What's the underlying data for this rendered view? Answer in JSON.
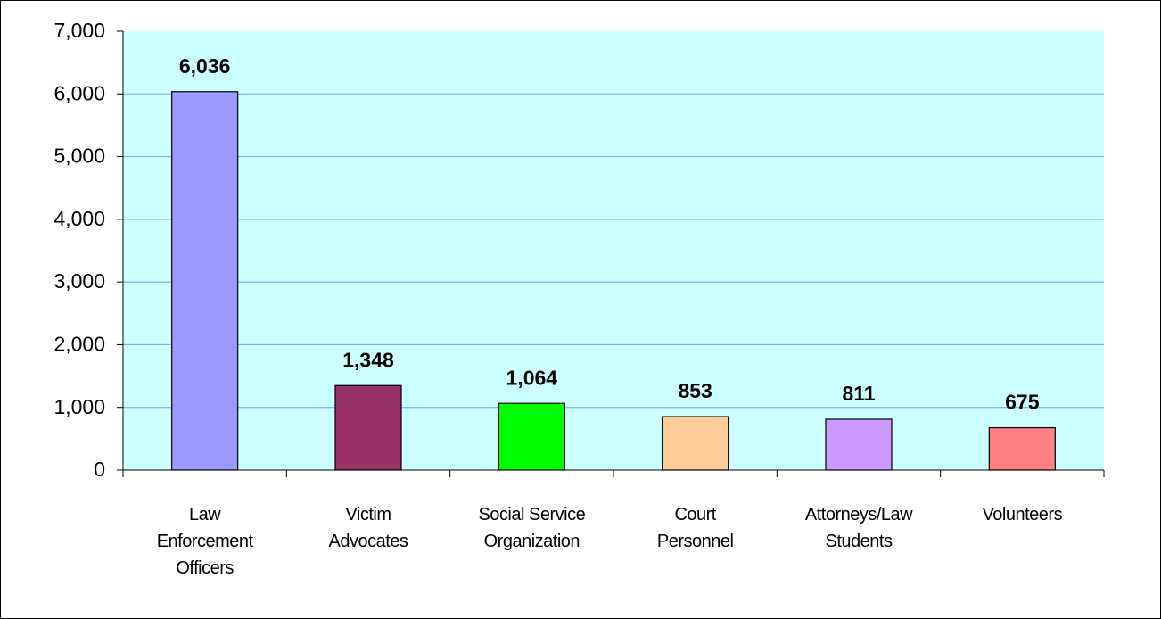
{
  "chart_data": {
    "type": "bar",
    "categories": [
      "Law\nEnforcement\nOfficers",
      "Victim\nAdvocates",
      "Social Service\nOrganization",
      "Court\nPersonnel",
      "Attorneys/Law\nStudents",
      "Volunteers"
    ],
    "values": [
      6036,
      1348,
      1064,
      853,
      811,
      675
    ],
    "value_labels": [
      "6,036",
      "1,348",
      "1,064",
      "853",
      "811",
      "675"
    ],
    "colors": [
      "#9999ff",
      "#993366",
      "#00ff00",
      "#ffcc99",
      "#cc99ff",
      "#ff8080"
    ],
    "ylim": [
      0,
      7000
    ],
    "yticks": [
      0,
      {
        "value": 1000,
        "label": "1,000"
      },
      {
        "value": 2000,
        "label": "2,000"
      },
      {
        "value": 3000,
        "label": "3,000"
      },
      {
        "value": 4000,
        "label": "4,000"
      },
      {
        "value": 5000,
        "label": "5,000"
      },
      {
        "value": 6000,
        "label": "6,000"
      },
      {
        "value": 7000,
        "label": "7,000"
      }
    ],
    "grid": true,
    "background": "#ccffff"
  }
}
